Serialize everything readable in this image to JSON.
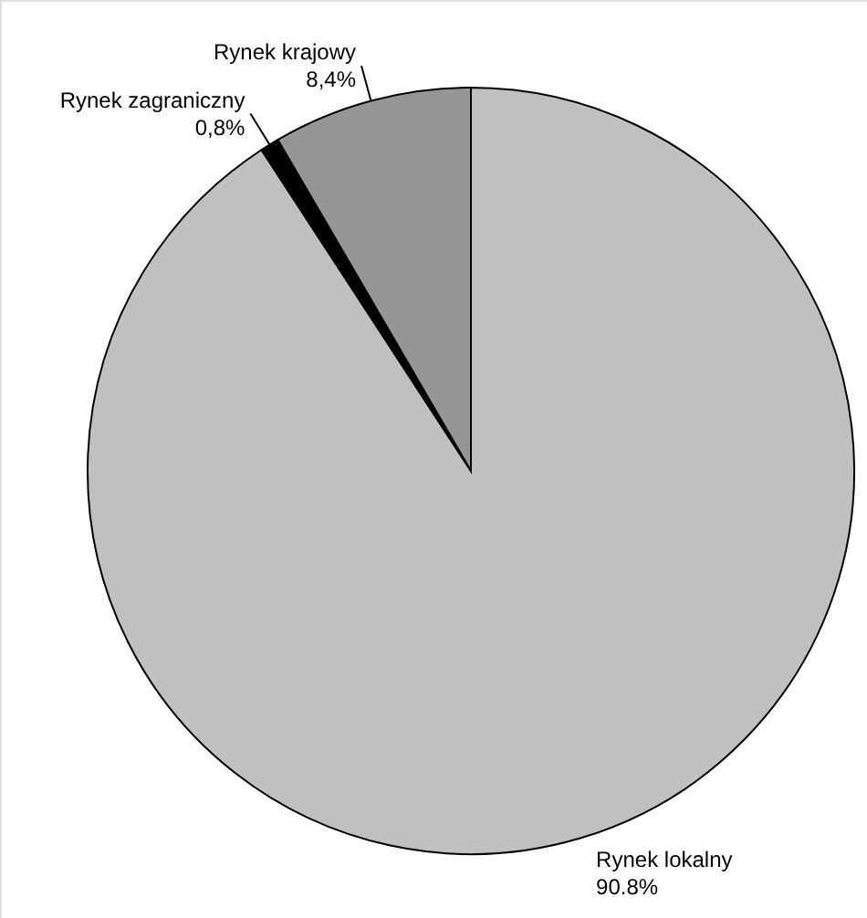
{
  "chart_data": {
    "type": "pie",
    "categories": [
      "Rynek lokalny",
      "Rynek zagraniczny",
      "Rynek krajowy"
    ],
    "values": [
      90.8,
      0.8,
      8.4
    ],
    "colors": [
      "#c0c0c0",
      "#000000",
      "#969696"
    ],
    "value_labels": [
      "90.8%",
      "0,8%",
      "8,4%"
    ]
  }
}
